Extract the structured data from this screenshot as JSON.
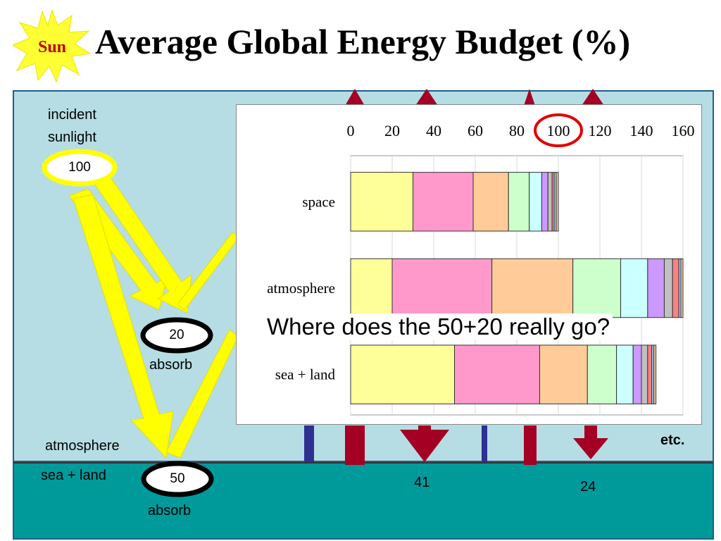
{
  "title": "Average Global Energy Budget (%)",
  "sun_label": "Sun",
  "incident": {
    "line1": "incident",
    "line2": "sunlight",
    "value": "100"
  },
  "atmosphere_absorb": {
    "value": "20",
    "label": "absorb"
  },
  "surface_absorb": {
    "value": "50",
    "label": "absorb"
  },
  "region_labels": {
    "atmosphere": "atmosphere",
    "sea_land": "sea + land"
  },
  "flux_values": {
    "left": "41",
    "right": "24"
  },
  "etc_label": "etc.",
  "question": "Where does the 50+20 really go?",
  "colors": {
    "upper_region": "#b6dde4",
    "lower_region": "#009a9b",
    "arrow_yellow": "#ffff00",
    "arrow_red": "#a30024",
    "arrow_blue": "#2e3192"
  },
  "chart_data": {
    "type": "bar",
    "orientation": "horizontal",
    "stacked": true,
    "categories": [
      "space",
      "atmosphere",
      "sea + land"
    ],
    "xticks": [
      "0",
      "20",
      "40",
      "60",
      "80",
      "100",
      "120",
      "140",
      "160"
    ],
    "xlim": [
      0,
      160
    ],
    "highlight_tick": "100",
    "segment_colors": [
      "#ffff99",
      "#ff99cc",
      "#ffcc99",
      "#ccffcc",
      "#ccffff",
      "#cc99ff",
      "#c0c0c0",
      "#ff8080",
      "#99ccff",
      "#ffcc99"
    ],
    "segments": [
      [
        30,
        29,
        17,
        10,
        6,
        3,
        2,
        1,
        1,
        1
      ],
      [
        20,
        48,
        39,
        23,
        13,
        8,
        4,
        3,
        1,
        1
      ],
      [
        50,
        41,
        23,
        14,
        8,
        4,
        3,
        2,
        1,
        1
      ]
    ]
  }
}
